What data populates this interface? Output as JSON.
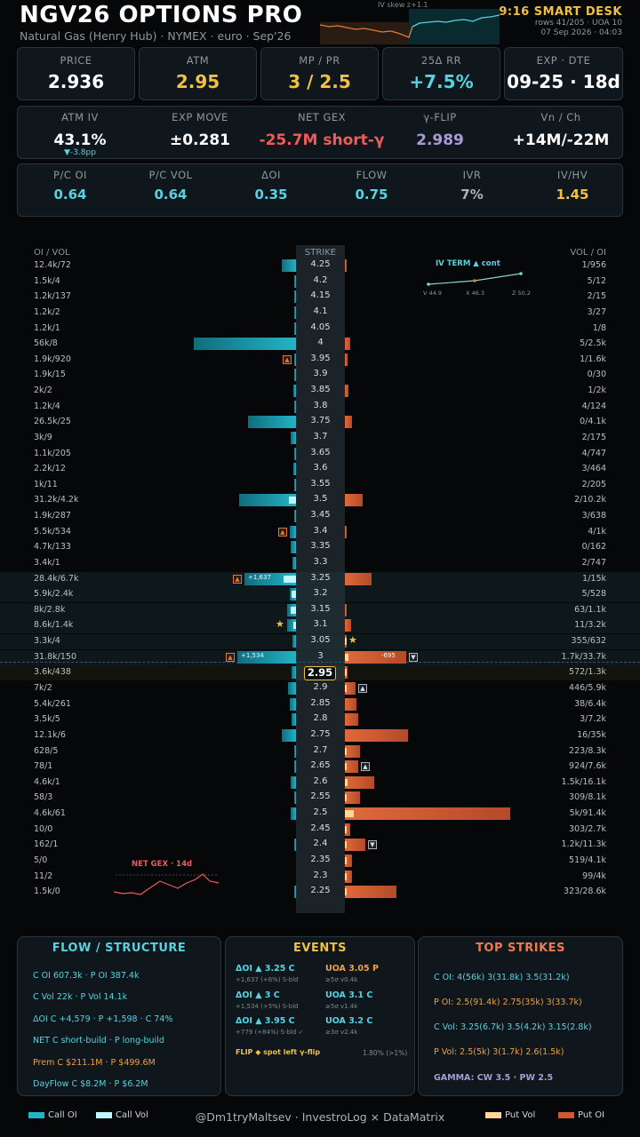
{
  "header": {
    "title": "NGV26 OPTIONS PRO",
    "subtitle": "Natural Gas (Henry Hub) · NYMEX · euro · Sep'26",
    "iv_skew_label": "IV skew   z+1.1",
    "brand": "9:16 SMART DESK",
    "rows_info": "rows 41/205 · UOA 10",
    "timestamp": "07 Sep 2026 · 04:03"
  },
  "kpis": [
    {
      "label": "PRICE",
      "value": "2.936",
      "color": "#ffffff"
    },
    {
      "label": "ATM",
      "value": "2.95",
      "color": "#f0c040"
    },
    {
      "label": "MP / PR",
      "value": "3 / 2.5",
      "color": "#f0c040"
    },
    {
      "label": "25Δ RR",
      "value": "+7.5%",
      "color": "#56d2e0"
    },
    {
      "label": "EXP · DTE",
      "value": "09-25 · 18d",
      "color": "#ffffff"
    }
  ],
  "stats": [
    {
      "label": "ATM IV",
      "value": "43.1%",
      "sub": "▼-3.8pp",
      "color": "#ffffff"
    },
    {
      "label": "EXP MOVE",
      "value": "±0.281",
      "sub": "",
      "color": "#ffffff"
    },
    {
      "label": "NET GEX",
      "value": "-25.7M short-γ",
      "sub": "",
      "color": "#f25a5a"
    },
    {
      "label": "γ-FLIP",
      "value": "2.989",
      "sub": "",
      "color": "#a99bd6"
    },
    {
      "label": "Vn / Ch",
      "value": "+14M/-22M",
      "sub": "",
      "color": "#ffffff"
    }
  ],
  "ratios": [
    {
      "label": "P/C OI",
      "value": "0.64",
      "color": "#56d2e0"
    },
    {
      "label": "P/C VOL",
      "value": "0.64",
      "color": "#56d2e0"
    },
    {
      "label": "ΔOI",
      "value": "0.35",
      "color": "#56d2e0"
    },
    {
      "label": "FLOW",
      "value": "0.75",
      "color": "#56d2e0"
    },
    {
      "label": "IVR",
      "value": "7%",
      "color": "#aab3ba"
    },
    {
      "label": "IV/HV",
      "value": "1.45",
      "color": "#f0c040"
    }
  ],
  "ladder": {
    "left_header": "OI / VOL",
    "center_header": "STRIKE",
    "right_header": "VOL / OI",
    "spot": "2.95",
    "iv_term": {
      "title": "IV TERM   ▲ cont",
      "labels": [
        "V 44.9",
        "X 46.3",
        "Z 50.2"
      ]
    },
    "net_gex_title": "NET GEX · 14d",
    "rows": [
      {
        "strike": "4.25",
        "left": "12.4k/72",
        "right": "1/956",
        "c": 0.135,
        "cv": 0,
        "p": 0.01,
        "pv": 0
      },
      {
        "strike": "4.2",
        "left": "1.5k/4",
        "right": "5/12",
        "c": 0.016,
        "cv": 0,
        "p": 0,
        "pv": 0
      },
      {
        "strike": "4.15",
        "left": "1.2k/137",
        "right": "2/15",
        "c": 0.013,
        "cv": 0,
        "p": 0,
        "pv": 0
      },
      {
        "strike": "4.1",
        "left": "1.2k/2",
        "right": "3/27",
        "c": 0.013,
        "cv": 0,
        "p": 0,
        "pv": 0
      },
      {
        "strike": "4.05",
        "left": "1.2k/1",
        "right": "1/8",
        "c": 0.013,
        "cv": 0,
        "p": 0,
        "pv": 0
      },
      {
        "strike": "4",
        "left": "56k/8",
        "right": "5/2.5k",
        "c": 1.0,
        "cv": 0,
        "p": 0.03,
        "pv": 0
      },
      {
        "strike": "3.95",
        "left": "1.9k/920",
        "right": "1/1.6k",
        "c": 0.02,
        "cv": 0,
        "p": 0.017,
        "pv": 0,
        "flag": "up"
      },
      {
        "strike": "3.9",
        "left": "1.9k/15",
        "right": "0/30",
        "c": 0.02,
        "cv": 0,
        "p": 0,
        "pv": 0
      },
      {
        "strike": "3.85",
        "left": "2k/2",
        "right": "1/2k",
        "c": 0.022,
        "cv": 0,
        "p": 0.022,
        "pv": 0
      },
      {
        "strike": "3.8",
        "left": "1.2k/4",
        "right": "4/124",
        "c": 0.013,
        "cv": 0,
        "p": 0,
        "pv": 0
      },
      {
        "strike": "3.75",
        "left": "26.5k/25",
        "right": "0/4.1k",
        "c": 0.47,
        "cv": 0,
        "p": 0.045,
        "pv": 0
      },
      {
        "strike": "3.7",
        "left": "3k/9",
        "right": "2/175",
        "c": 0.05,
        "cv": 0,
        "p": 0,
        "pv": 0
      },
      {
        "strike": "3.65",
        "left": "1.1k/205",
        "right": "4/747",
        "c": 0.012,
        "cv": 0,
        "p": 0,
        "pv": 0
      },
      {
        "strike": "3.6",
        "left": "2.2k/12",
        "right": "3/464",
        "c": 0.024,
        "cv": 0,
        "p": 0,
        "pv": 0
      },
      {
        "strike": "3.55",
        "left": "1k/11",
        "right": "2/205",
        "c": 0.011,
        "cv": 0,
        "p": 0,
        "pv": 0
      },
      {
        "strike": "3.5",
        "left": "31.2k/4.2k",
        "right": "2/10.2k",
        "c": 0.56,
        "cv": 0.07,
        "p": 0.11,
        "pv": 0
      },
      {
        "strike": "3.45",
        "left": "1.9k/287",
        "right": "3/638",
        "c": 0.02,
        "cv": 0,
        "p": 0,
        "pv": 0
      },
      {
        "strike": "3.4",
        "left": "5.5k/534",
        "right": "4/1k",
        "c": 0.06,
        "cv": 0,
        "p": 0.011,
        "pv": 0,
        "flag": "up"
      },
      {
        "strike": "3.35",
        "left": "4.7k/133",
        "right": "0/162",
        "c": 0.05,
        "cv": 0,
        "p": 0,
        "pv": 0
      },
      {
        "strike": "3.3",
        "left": "3.4k/1",
        "right": "2/747",
        "c": 0.037,
        "cv": 0,
        "p": 0,
        "pv": 0
      },
      {
        "strike": "3.25",
        "left": "28.4k/6.7k",
        "right": "1/15k",
        "c": 0.5,
        "cv": 0.12,
        "p": 0.16,
        "pv": 0,
        "flag": "up",
        "tag": "+1,637",
        "hl": true
      },
      {
        "strike": "3.2",
        "left": "5.9k/2.4k",
        "right": "5/528",
        "c": 0.06,
        "cv": 0.04,
        "p": 0,
        "pv": 0,
        "hl": true
      },
      {
        "strike": "3.15",
        "left": "8k/2.8k",
        "right": "63/1.1k",
        "c": 0.085,
        "cv": 0.05,
        "p": 0.012,
        "pv": 0,
        "hl": true
      },
      {
        "strike": "3.1",
        "left": "8.6k/1.4k",
        "right": "11/3.2k",
        "c": 0.09,
        "cv": 0.025,
        "p": 0.035,
        "pv": 0,
        "star": "left",
        "hl": true
      },
      {
        "strike": "3.05",
        "left": "3.3k/4",
        "right": "355/632",
        "c": 0.035,
        "cv": 0,
        "p": 0.007,
        "pv": 0.004,
        "star": "right",
        "hl": true
      },
      {
        "strike": "3",
        "left": "31.8k/150",
        "right": "1.7k/33.7k",
        "c": 0.57,
        "cv": 0,
        "p": 0.37,
        "pv": 0.02,
        "flag": "up",
        "tag": "+1,534",
        "ptag": "-695",
        "pflag": "down",
        "hl": true
      },
      {
        "strike": "2.95",
        "left": "3.6k/438",
        "right": "572/1.3k",
        "c": 0.04,
        "cv": 0,
        "p": 0.014,
        "pv": 0.006,
        "spot": true
      },
      {
        "strike": "2.9",
        "left": "7k/2",
        "right": "446/5.9k",
        "c": 0.075,
        "cv": 0,
        "p": 0.065,
        "pv": 0.005,
        "pflag": "up"
      },
      {
        "strike": "2.85",
        "left": "5.4k/261",
        "right": "38/6.4k",
        "c": 0.06,
        "cv": 0,
        "p": 0.07,
        "pv": 0
      },
      {
        "strike": "2.8",
        "left": "3.5k/5",
        "right": "3/7.2k",
        "c": 0.04,
        "cv": 0,
        "p": 0.08,
        "pv": 0
      },
      {
        "strike": "2.75",
        "left": "12.1k/6",
        "right": "16/35k",
        "c": 0.135,
        "cv": 0,
        "p": 0.38,
        "pv": 0
      },
      {
        "strike": "2.7",
        "left": "628/5",
        "right": "223/8.3k",
        "c": 0.007,
        "cv": 0,
        "p": 0.09,
        "pv": 0.003
      },
      {
        "strike": "2.65",
        "left": "78/1",
        "right": "924/7.6k",
        "c": 0.001,
        "cv": 0,
        "p": 0.083,
        "pv": 0.01,
        "pflag": "up"
      },
      {
        "strike": "2.6",
        "left": "4.6k/1",
        "right": "1.5k/16.1k",
        "c": 0.05,
        "cv": 0,
        "p": 0.175,
        "pv": 0.016
      },
      {
        "strike": "2.55",
        "left": "58/3",
        "right": "309/8.1k",
        "c": 0.001,
        "cv": 0,
        "p": 0.09,
        "pv": 0.003
      },
      {
        "strike": "2.5",
        "left": "4.6k/61",
        "right": "5k/91.4k",
        "c": 0.05,
        "cv": 0,
        "p": 1.0,
        "pv": 0.055
      },
      {
        "strike": "2.45",
        "left": "10/0",
        "right": "303/2.7k",
        "c": 0,
        "cv": 0,
        "p": 0.03,
        "pv": 0.003
      },
      {
        "strike": "2.4",
        "left": "162/1",
        "right": "1.2k/11.3k",
        "c": 0.002,
        "cv": 0,
        "p": 0.124,
        "pv": 0.013,
        "pflag": "down"
      },
      {
        "strike": "2.35",
        "left": "5/0",
        "right": "519/4.1k",
        "c": 0,
        "cv": 0,
        "p": 0.045,
        "pv": 0.006
      },
      {
        "strike": "2.3",
        "left": "11/2",
        "right": "99/4k",
        "c": 0,
        "cv": 0,
        "p": 0.044,
        "pv": 0.001
      },
      {
        "strike": "2.25",
        "left": "1.5k/0",
        "right": "323/28.6k",
        "c": 0.016,
        "cv": 0,
        "p": 0.31,
        "pv": 0.004
      }
    ]
  },
  "flow_panel": {
    "title": "FLOW / STRUCTURE",
    "lines": [
      {
        "text": "C OI 607.3k  ·  P OI 387.4k",
        "color": "#56d2e0"
      },
      {
        "text": "C Vol 22k  ·  P Vol 14.1k",
        "color": "#56d2e0"
      },
      {
        "text": "ΔOI C +4,579  ·  P +1,598  ·  C 74%",
        "color": "#56d2e0"
      },
      {
        "text": "NET  C short-build  ·  P long-build",
        "color": "#56d2e0"
      },
      {
        "text": "Prem  C $211.1M  ·  P $499.6M",
        "color": "#f0a040"
      },
      {
        "text": "DayFlow  C $8.2M  ·  P $6.2M",
        "color": "#56d2e0"
      }
    ]
  },
  "events_panel": {
    "title": "EVENTS",
    "left": [
      {
        "head": "ΔOI ▲ 3.25 C",
        "sub": "+1,637 (+6%)  S-bld"
      },
      {
        "head": "ΔOI ▲ 3 C",
        "sub": "+1,534 (+5%)  S-bld"
      },
      {
        "head": "ΔOI ▲ 3.95 C",
        "sub": "+779 (+84%)  S-bld ✓"
      }
    ],
    "right": [
      {
        "head": "UOA 3.05 P",
        "sub": "≥5σ v0.4k"
      },
      {
        "head": "UOA 3.1 C",
        "sub": "≥5σ v1.4k"
      },
      {
        "head": "UOA 3.2 C",
        "sub": "≥3σ v2.4k"
      }
    ],
    "flip": "FLIP ◆ spot left γ-flip",
    "flip_pct": "1.80% (>1%)"
  },
  "top_panel": {
    "title": "TOP STRIKES",
    "lines": [
      {
        "text": "C OI: 4(56k)  3(31.8k)  3.5(31.2k)",
        "color": "#56d2e0"
      },
      {
        "text": "P OI: 2.5(91.4k)  2.75(35k)  3(33.7k)",
        "color": "#f0a040"
      },
      {
        "text": "C Vol: 3.25(6.7k)  3.5(4.2k)  3.15(2.8k)",
        "color": "#56d2e0"
      },
      {
        "text": "P Vol: 2.5(5k)  3(1.7k)  2.6(1.5k)",
        "color": "#f0a040"
      },
      {
        "text": "GAMMA: CW 3.5 · PW 2.5",
        "color": "#a99bd6"
      }
    ]
  },
  "footer": {
    "call_oi": "Call OI",
    "call_vol": "Call Vol",
    "credit": "@Dm1tryMaltsev  ·  InvestroLog × DataMatrix",
    "put_vol": "Put Vol",
    "put_oi": "Put OI"
  },
  "colors": {
    "call": "#23b3c6",
    "call_vol": "#bff6ff",
    "put": "#d2582e",
    "put_vol": "#ffd89a",
    "accent": "#f0c040"
  }
}
